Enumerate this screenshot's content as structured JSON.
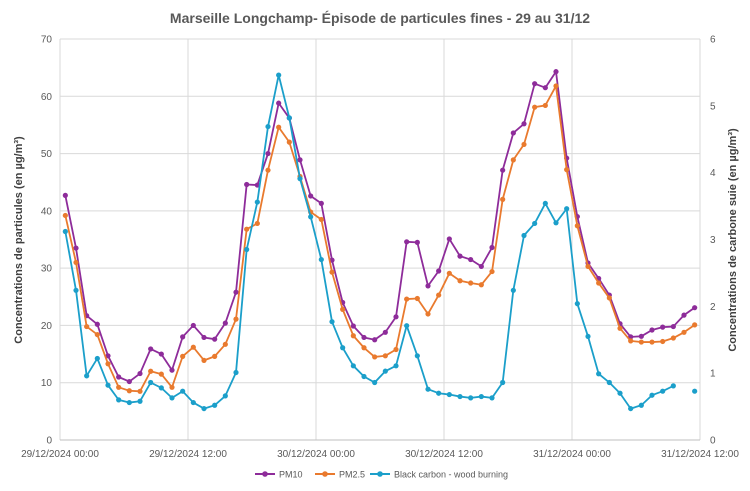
{
  "chart_data": {
    "type": "line",
    "title": "Marseille Longchamp- Épisode de particules fines - 29 au 31/12",
    "ylabel": "Concentrations de particules (en µg/m³)",
    "y2label": "Concentrations de carbone suie (en µg/m³)",
    "ylim": [
      0,
      70
    ],
    "y2lim": [
      0,
      6
    ],
    "yticks": [
      "0",
      "10",
      "20",
      "30",
      "40",
      "50",
      "60",
      "70"
    ],
    "y2ticks": [
      "0",
      "1",
      "2",
      "3",
      "4",
      "5",
      "6"
    ],
    "x_hours_range": [
      0,
      60
    ],
    "xticks": [
      {
        "hour": 0,
        "label": "29/12/2024 00:00"
      },
      {
        "hour": 12,
        "label": "29/12/2024 12:00"
      },
      {
        "hour": 24,
        "label": "30/12/2024 00:00"
      },
      {
        "hour": 36,
        "label": "30/12/2024 12:00"
      },
      {
        "hour": 48,
        "label": "31/12/2024 00:00"
      },
      {
        "hour": 60,
        "label": "31/12/2024 12:00"
      }
    ],
    "grid": true,
    "legend_position": "bottom",
    "series": [
      {
        "name": "PM10",
        "color": "#8E2C9A",
        "axis": "left",
        "values": [
          42.7,
          33.5,
          21.7,
          20.2,
          14.7,
          11,
          10.2,
          11.6,
          15.9,
          15,
          12.2,
          18,
          20,
          17.9,
          17.6,
          20.4,
          25.8,
          44.6,
          44.5,
          50,
          58.8,
          56.2,
          48.9,
          42.6,
          41.3,
          31.4,
          24,
          19.9,
          17.9,
          17.5,
          18.8,
          21.5,
          34.6,
          34.5,
          26.9,
          29.5,
          35.1,
          32.1,
          31.5,
          30.3,
          33.6,
          47.1,
          53.6,
          55.2,
          62.2,
          61.5,
          64.3,
          49.2,
          39,
          30.9,
          28.2,
          25.3,
          20.3,
          18,
          18.1,
          19.2,
          19.7,
          19.8,
          21.8,
          23.1
        ]
      },
      {
        "name": "PM2.5",
        "color": "#E97A2E",
        "axis": "left",
        "values": [
          39.2,
          31,
          19.8,
          18.4,
          13.3,
          9.2,
          8.6,
          8.5,
          12,
          11.5,
          9.2,
          14.6,
          16.2,
          13.9,
          14.6,
          16.7,
          21.1,
          36.8,
          37.8,
          47.1,
          54.6,
          52,
          46,
          39.8,
          38.5,
          29.3,
          22.8,
          18.2,
          16.1,
          14.5,
          14.7,
          15.8,
          24.6,
          24.7,
          22,
          25.3,
          29.1,
          27.8,
          27.4,
          27.1,
          29.4,
          42,
          48.9,
          51.6,
          58.1,
          58.4,
          61.8,
          47.2,
          37.4,
          30.3,
          27.4,
          24.8,
          19.5,
          17.3,
          17.1,
          17.1,
          17.2,
          17.8,
          18.8,
          20.1
        ]
      },
      {
        "name": "Black carbon - wood burning",
        "color": "#1B9FCA",
        "axis": "right",
        "values": [
          3.12,
          2.24,
          0.96,
          1.22,
          0.82,
          0.6,
          0.56,
          0.58,
          0.86,
          0.78,
          0.63,
          0.73,
          0.56,
          0.47,
          0.52,
          0.66,
          1.01,
          2.85,
          3.56,
          4.69,
          5.46,
          4.82,
          3.91,
          3.34,
          2.7,
          1.77,
          1.38,
          1.11,
          0.95,
          0.86,
          1.03,
          1.11,
          1.71,
          1.26,
          0.76,
          0.7,
          0.68,
          0.65,
          0.63,
          0.65,
          0.63,
          0.86,
          2.24,
          3.06,
          3.24,
          3.54,
          3.25,
          3.46,
          2.04,
          1.55,
          0.99,
          0.86,
          0.7,
          0.47,
          0.52,
          0.67,
          0.73,
          0.81,
          null,
          0.73
        ]
      }
    ]
  }
}
